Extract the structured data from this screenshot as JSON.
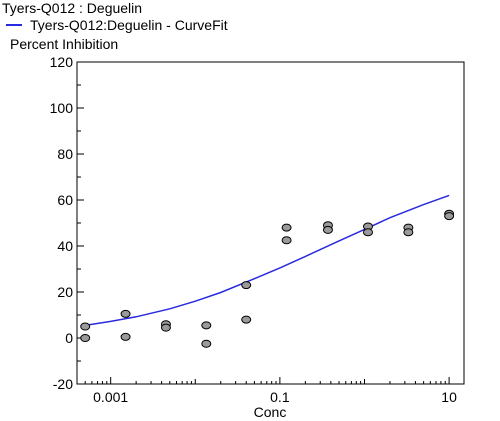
{
  "chart_data": {
    "type": "scatter",
    "title": "Tyers-Q012  :  Deguelin",
    "legend": [
      {
        "label": "Tyers-Q012:Deguelin - CurveFit",
        "color": "#2a2ae0"
      }
    ],
    "ylabel": "Percent Inhibition",
    "xlabel": "Conc",
    "xscale": "log",
    "xlim": [
      0.0004,
      15
    ],
    "ylim": [
      -20,
      120
    ],
    "xticks": [
      {
        "value": 0.001,
        "label": "0.001"
      },
      {
        "value": 0.1,
        "label": "0.1"
      },
      {
        "value": 10,
        "label": "10"
      }
    ],
    "yticks": [
      {
        "value": -20,
        "label": "-20"
      },
      {
        "value": 0,
        "label": "0"
      },
      {
        "value": 20,
        "label": "20"
      },
      {
        "value": 40,
        "label": "40"
      },
      {
        "value": 60,
        "label": "60"
      },
      {
        "value": 80,
        "label": "80"
      },
      {
        "value": 100,
        "label": "100"
      },
      {
        "value": 120,
        "label": "120"
      }
    ],
    "grid": false,
    "points": [
      {
        "x": 0.0005,
        "y": 5
      },
      {
        "x": 0.0005,
        "y": 0
      },
      {
        "x": 0.0015,
        "y": 10.5
      },
      {
        "x": 0.0015,
        "y": 0.5
      },
      {
        "x": 0.0045,
        "y": 6
      },
      {
        "x": 0.0045,
        "y": 4.5
      },
      {
        "x": 0.0135,
        "y": 5.5
      },
      {
        "x": 0.0135,
        "y": -2.5
      },
      {
        "x": 0.04,
        "y": 23
      },
      {
        "x": 0.04,
        "y": 8
      },
      {
        "x": 0.12,
        "y": 48
      },
      {
        "x": 0.12,
        "y": 42.5
      },
      {
        "x": 0.37,
        "y": 49
      },
      {
        "x": 0.37,
        "y": 47
      },
      {
        "x": 1.1,
        "y": 48.5
      },
      {
        "x": 1.1,
        "y": 46
      },
      {
        "x": 3.3,
        "y": 48
      },
      {
        "x": 3.3,
        "y": 46
      },
      {
        "x": 10,
        "y": 54
      },
      {
        "x": 10,
        "y": 53
      }
    ],
    "curve": {
      "name": "Tyers-Q012:Deguelin - CurveFit",
      "x": [
        0.0005,
        0.001,
        0.002,
        0.005,
        0.01,
        0.02,
        0.05,
        0.1,
        0.2,
        0.5,
        1,
        2,
        5,
        10
      ],
      "y": [
        5.5,
        7.2,
        9.2,
        12.7,
        16,
        19.8,
        25.8,
        30.5,
        35.5,
        42.2,
        47.2,
        52.3,
        58,
        62
      ]
    }
  }
}
